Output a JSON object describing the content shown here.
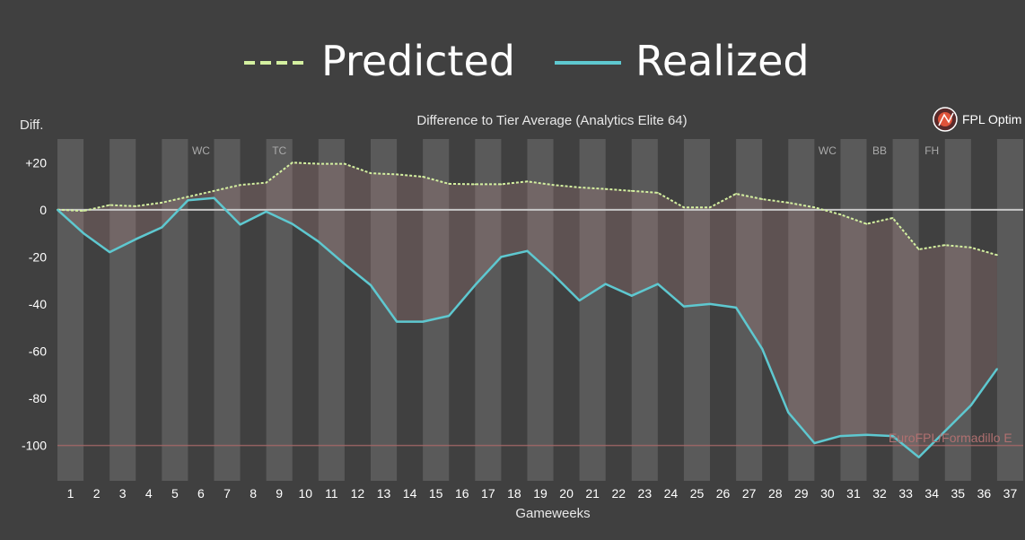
{
  "chart_data": {
    "type": "line",
    "title": "Difference to Tier Average (Analytics Elite 64)",
    "xlabel": "Gameweeks",
    "ylabel": "Diff.",
    "brand": "FPL Optim",
    "watermark": "EuroFPL/Formadillo E",
    "x": [
      1,
      2,
      3,
      4,
      5,
      6,
      7,
      8,
      9,
      10,
      11,
      12,
      13,
      14,
      15,
      16,
      17,
      18,
      19,
      20,
      21,
      22,
      23,
      24,
      25,
      26,
      27,
      28,
      29,
      30,
      31,
      32,
      33,
      34,
      35,
      36,
      37
    ],
    "x_tick_labels": [
      "1",
      "2",
      "3",
      "4",
      "5",
      "6",
      "7",
      "8",
      "9",
      "10",
      "11",
      "12",
      "13",
      "14",
      "15",
      "16",
      "17",
      "18",
      "19",
      "20",
      "21",
      "22",
      "23",
      "24",
      "25",
      "26",
      "27",
      "28",
      "29",
      "30",
      "31",
      "32",
      "33",
      "34",
      "35",
      "36",
      "37"
    ],
    "xlim": [
      0.5,
      37.5
    ],
    "ylim": [
      -115,
      30
    ],
    "y_ticks": [
      20,
      0,
      -20,
      -40,
      -60,
      -80,
      -100
    ],
    "y_tick_labels": [
      "+20",
      "0",
      "-20",
      "-40",
      "-60",
      "-80",
      "-100"
    ],
    "reference_line": -100,
    "series": [
      {
        "name": "Predicted",
        "style": "dashed",
        "color": "#d4f0a0",
        "x": [
          0.5,
          1.5,
          2.5,
          3.5,
          4.5,
          5.5,
          6.5,
          7.5,
          8.5,
          9.5,
          10.5,
          11.5,
          12.5,
          13.5,
          14.5,
          15.5,
          16.5,
          17.5,
          18.5,
          19.5,
          20.5,
          21.5,
          22.5,
          23.5,
          24.5,
          25.5,
          26.5,
          27.5,
          28.5,
          29.5,
          30.5,
          31.5,
          32.5,
          33.5,
          34.5,
          35.5,
          36.5
        ],
        "values": [
          0,
          -0.5,
          2,
          1.5,
          3,
          5.5,
          8,
          10.5,
          11.5,
          20,
          19.5,
          19.5,
          15.5,
          15,
          14,
          11,
          10.8,
          10.8,
          12,
          10.5,
          9.5,
          8.8,
          8,
          7.2,
          1,
          1,
          6.8,
          4.5,
          3,
          1,
          -2,
          -6,
          -3.5,
          -16.8,
          -15,
          -16,
          -19.2
        ]
      },
      {
        "name": "Realized",
        "style": "solid",
        "color": "#5ec8d0",
        "x": [
          0.5,
          1.5,
          2.5,
          3.5,
          4.5,
          5.5,
          6.5,
          7.5,
          8.5,
          9.5,
          10.5,
          11.5,
          12.5,
          13.5,
          14.5,
          15.5,
          16.5,
          17.5,
          18.5,
          19.5,
          20.5,
          21.5,
          22.5,
          23.5,
          24.5,
          25.5,
          26.5,
          27.5,
          28.5,
          29.5,
          30.5,
          31.5,
          32.5,
          33.5,
          34.5,
          35.5,
          36.5
        ],
        "values": [
          0,
          -10,
          -18,
          -12.5,
          -7.5,
          4,
          5,
          -6.3,
          -0.8,
          -6,
          -13.5,
          -23,
          -32,
          -47.5,
          -47.5,
          -45,
          -32,
          -20,
          -17.5,
          -27.5,
          -38.5,
          -31.5,
          -36.5,
          -31.5,
          -41,
          -40,
          -41.5,
          -59,
          -86,
          -99,
          -96,
          -95.5,
          -96,
          -105,
          -94,
          -83,
          -67.5
        ]
      }
    ],
    "chips": [
      {
        "gw": 6,
        "label": "WC"
      },
      {
        "gw": 9,
        "label": "TC"
      },
      {
        "gw": 30,
        "label": "WC"
      },
      {
        "gw": 32,
        "label": "BB"
      },
      {
        "gw": 34,
        "label": "FH"
      }
    ],
    "colors": {
      "background": "#404040",
      "band": "#5a5a5a",
      "fill": "#c89090",
      "zero_line": "#c8c8c8",
      "reference_line": "#a86868"
    }
  }
}
